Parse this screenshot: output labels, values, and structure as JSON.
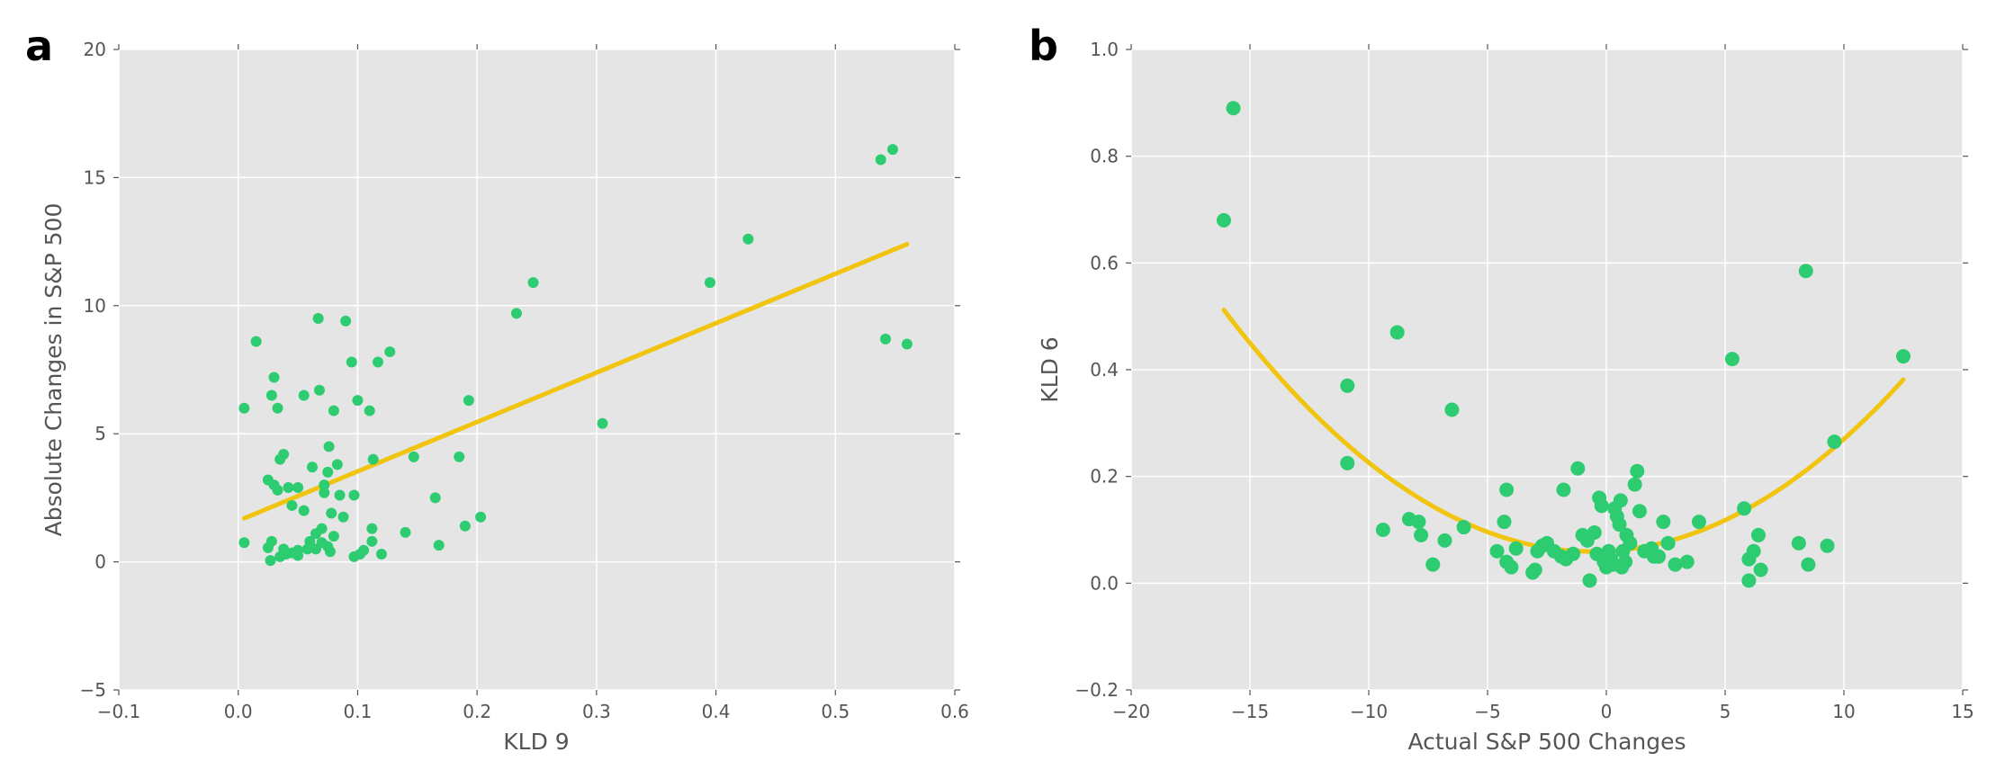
{
  "chart_data": [
    {
      "panel": "a",
      "type": "scatter",
      "xlabel": "KLD 9",
      "ylabel": "Absolute Changes in S&P 500",
      "xlim": [
        -0.1,
        0.6
      ],
      "ylim": [
        -5,
        20
      ],
      "xticks": [
        -0.1,
        0.0,
        0.1,
        0.2,
        0.3,
        0.4,
        0.5,
        0.6
      ],
      "xtick_labels": [
        "−0.1",
        "0.0",
        "0.1",
        "0.2",
        "0.3",
        "0.4",
        "0.5",
        "0.6"
      ],
      "yticks": [
        -5,
        0,
        5,
        10,
        15,
        20
      ],
      "ytick_labels": [
        "−5",
        "0",
        "5",
        "10",
        "15",
        "20"
      ],
      "grid": true,
      "point_color": "#2ecc71",
      "fit_color": "#f1c40f",
      "points": [
        [
          0.005,
          0.75
        ],
        [
          0.005,
          6.0
        ],
        [
          0.015,
          8.6
        ],
        [
          0.025,
          0.55
        ],
        [
          0.025,
          3.2
        ],
        [
          0.027,
          0.05
        ],
        [
          0.028,
          6.5
        ],
        [
          0.028,
          0.8
        ],
        [
          0.03,
          7.2
        ],
        [
          0.03,
          3.0
        ],
        [
          0.033,
          2.8
        ],
        [
          0.033,
          6.0
        ],
        [
          0.035,
          0.2
        ],
        [
          0.035,
          4.0
        ],
        [
          0.038,
          4.2
        ],
        [
          0.038,
          0.5
        ],
        [
          0.04,
          0.3
        ],
        [
          0.042,
          2.9
        ],
        [
          0.045,
          0.35
        ],
        [
          0.045,
          2.2
        ],
        [
          0.05,
          2.9
        ],
        [
          0.05,
          0.45
        ],
        [
          0.05,
          0.25
        ],
        [
          0.055,
          6.5
        ],
        [
          0.055,
          2.0
        ],
        [
          0.058,
          0.5
        ],
        [
          0.06,
          0.8
        ],
        [
          0.062,
          3.7
        ],
        [
          0.065,
          0.5
        ],
        [
          0.065,
          1.1
        ],
        [
          0.067,
          9.5
        ],
        [
          0.068,
          6.7
        ],
        [
          0.07,
          0.75
        ],
        [
          0.07,
          1.3
        ],
        [
          0.072,
          3.0
        ],
        [
          0.072,
          2.7
        ],
        [
          0.075,
          0.6
        ],
        [
          0.075,
          3.5
        ],
        [
          0.076,
          4.5
        ],
        [
          0.077,
          0.4
        ],
        [
          0.078,
          1.9
        ],
        [
          0.08,
          5.9
        ],
        [
          0.08,
          1.0
        ],
        [
          0.083,
          3.8
        ],
        [
          0.085,
          2.6
        ],
        [
          0.088,
          1.75
        ],
        [
          0.09,
          9.4
        ],
        [
          0.095,
          7.8
        ],
        [
          0.097,
          2.6
        ],
        [
          0.097,
          0.2
        ],
        [
          0.1,
          6.3
        ],
        [
          0.102,
          0.3
        ],
        [
          0.105,
          0.45
        ],
        [
          0.11,
          5.9
        ],
        [
          0.112,
          1.3
        ],
        [
          0.112,
          0.8
        ],
        [
          0.113,
          4.0
        ],
        [
          0.117,
          7.8
        ],
        [
          0.12,
          0.3
        ],
        [
          0.127,
          8.2
        ],
        [
          0.14,
          1.15
        ],
        [
          0.147,
          4.1
        ],
        [
          0.165,
          2.5
        ],
        [
          0.168,
          0.65
        ],
        [
          0.185,
          4.1
        ],
        [
          0.19,
          1.4
        ],
        [
          0.193,
          6.3
        ],
        [
          0.203,
          1.75
        ],
        [
          0.233,
          9.7
        ],
        [
          0.247,
          10.9
        ],
        [
          0.305,
          5.4
        ],
        [
          0.395,
          10.9
        ],
        [
          0.427,
          12.6
        ],
        [
          0.538,
          15.7
        ],
        [
          0.542,
          8.7
        ],
        [
          0.548,
          16.1
        ],
        [
          0.56,
          8.5
        ]
      ],
      "fit": {
        "type": "linear",
        "x_range": [
          0.005,
          0.56
        ],
        "y_range": [
          1.7,
          12.4
        ]
      }
    },
    {
      "panel": "b",
      "type": "scatter",
      "xlabel": "Actual S&P 500 Changes",
      "ylabel": "KLD 6",
      "xlim": [
        -20,
        15
      ],
      "ylim": [
        -0.2,
        1.0
      ],
      "xticks": [
        -20,
        -15,
        -10,
        -5,
        0,
        5,
        10,
        15
      ],
      "xtick_labels": [
        "−20",
        "−15",
        "−10",
        "−5",
        "0",
        "5",
        "10",
        "15"
      ],
      "yticks": [
        -0.2,
        0.0,
        0.2,
        0.4,
        0.6,
        0.8,
        1.0
      ],
      "ytick_labels": [
        "−0.2",
        "0.0",
        "0.2",
        "0.4",
        "0.6",
        "0.8",
        "1.0"
      ],
      "grid": true,
      "point_color": "#2ecc71",
      "fit_color": "#f1c40f",
      "points": [
        [
          -16.1,
          0.68
        ],
        [
          -15.7,
          0.89
        ],
        [
          -10.9,
          0.37
        ],
        [
          -10.9,
          0.225
        ],
        [
          -8.8,
          0.47
        ],
        [
          -9.4,
          0.1
        ],
        [
          -8.3,
          0.12
        ],
        [
          -7.9,
          0.115
        ],
        [
          -7.8,
          0.09
        ],
        [
          -7.3,
          0.035
        ],
        [
          -6.5,
          0.325
        ],
        [
          -6.8,
          0.08
        ],
        [
          -6.0,
          0.105
        ],
        [
          -4.6,
          0.06
        ],
        [
          -4.3,
          0.115
        ],
        [
          -4.2,
          0.175
        ],
        [
          -4.2,
          0.04
        ],
        [
          -4.0,
          0.03
        ],
        [
          -3.8,
          0.065
        ],
        [
          -3.1,
          0.02
        ],
        [
          -3.0,
          0.025
        ],
        [
          -2.9,
          0.06
        ],
        [
          -2.7,
          0.07
        ],
        [
          -2.5,
          0.075
        ],
        [
          -2.2,
          0.06
        ],
        [
          -1.9,
          0.05
        ],
        [
          -1.7,
          0.045
        ],
        [
          -1.8,
          0.175
        ],
        [
          -1.4,
          0.055
        ],
        [
          -1.2,
          0.215
        ],
        [
          -1.0,
          0.09
        ],
        [
          -0.8,
          0.08
        ],
        [
          -0.7,
          0.005
        ],
        [
          -0.5,
          0.095
        ],
        [
          -0.4,
          0.055
        ],
        [
          -0.3,
          0.16
        ],
        [
          -0.2,
          0.145
        ],
        [
          -0.1,
          0.04
        ],
        [
          0.0,
          0.03
        ],
        [
          0.1,
          0.06
        ],
        [
          0.2,
          0.045
        ],
        [
          0.3,
          0.035
        ],
        [
          0.35,
          0.14
        ],
        [
          0.45,
          0.125
        ],
        [
          0.55,
          0.11
        ],
        [
          0.6,
          0.155
        ],
        [
          0.65,
          0.03
        ],
        [
          0.7,
          0.06
        ],
        [
          0.8,
          0.04
        ],
        [
          0.85,
          0.09
        ],
        [
          1.0,
          0.075
        ],
        [
          1.2,
          0.185
        ],
        [
          1.3,
          0.21
        ],
        [
          1.4,
          0.135
        ],
        [
          1.6,
          0.06
        ],
        [
          1.9,
          0.065
        ],
        [
          2.0,
          0.05
        ],
        [
          2.2,
          0.05
        ],
        [
          2.4,
          0.115
        ],
        [
          2.6,
          0.075
        ],
        [
          2.9,
          0.035
        ],
        [
          3.4,
          0.04
        ],
        [
          3.9,
          0.115
        ],
        [
          5.3,
          0.42
        ],
        [
          5.8,
          0.14
        ],
        [
          6.0,
          0.005
        ],
        [
          6.0,
          0.045
        ],
        [
          6.2,
          0.06
        ],
        [
          6.4,
          0.09
        ],
        [
          6.5,
          0.025
        ],
        [
          8.1,
          0.075
        ],
        [
          8.4,
          0.585
        ],
        [
          8.5,
          0.035
        ],
        [
          9.3,
          0.07
        ],
        [
          9.6,
          0.265
        ],
        [
          12.5,
          0.425
        ]
      ],
      "fit": {
        "type": "quadratic",
        "coeffs": [
          0.00188,
          0.0022,
          0.06
        ],
        "x_range": [
          -16.1,
          12.5
        ]
      }
    }
  ]
}
